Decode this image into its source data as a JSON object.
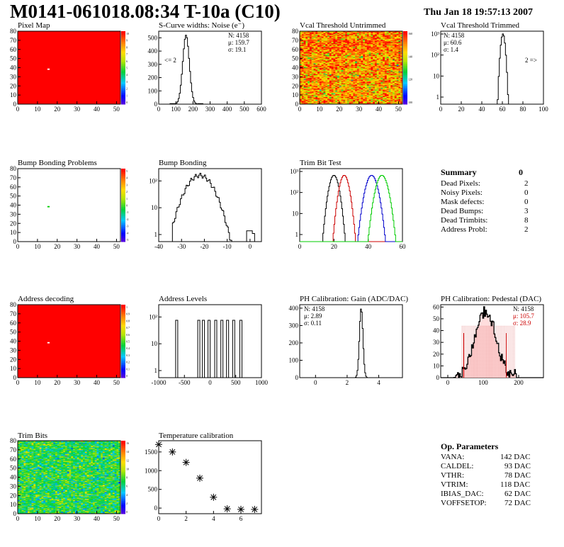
{
  "header": {
    "title": "M0141-061018.08:34 T-10a (C10)",
    "date": "Thu Jan 18 19:57:13 2007"
  },
  "colors": {
    "heat_red": "#ff0000",
    "hist_black": "#000000",
    "trim_red": "#cc0000",
    "trim_blue": "#0000cc",
    "trim_green": "#00cc00",
    "pedestal_fill": "#cc0000",
    "stats_red": "#cc0000"
  },
  "chart_data": [
    {
      "id": "pixel-map",
      "type": "heatmap",
      "title": "Pixel Map",
      "xlim": [
        0,
        52
      ],
      "ylim": [
        0,
        80
      ],
      "xticks": [
        0,
        10,
        20,
        30,
        40,
        50
      ],
      "yticks": [
        0,
        10,
        20,
        30,
        40,
        50,
        60,
        70,
        80
      ],
      "palette_ticks": [
        10,
        9,
        8,
        7,
        6,
        5,
        4,
        3,
        2,
        1,
        0
      ],
      "fill_value": 10,
      "special_pixels": [
        {
          "x": 15,
          "y": 38,
          "value": 0
        }
      ]
    },
    {
      "id": "scurve-widths",
      "type": "histogram",
      "title": "S-Curve widths: Noise (e⁻)",
      "xlim": [
        0,
        600
      ],
      "ylim": [
        0,
        550
      ],
      "xticks": [
        0,
        100,
        200,
        300,
        400,
        500,
        600
      ],
      "yticks": [
        0,
        100,
        200,
        300,
        400,
        500
      ],
      "stats": [
        "N: 4158",
        "μ: 159.7",
        "σ: 19.1"
      ],
      "underflow_label": "<= 2",
      "peak": {
        "mean": 159.7,
        "sigma": 19.1,
        "height": 520
      }
    },
    {
      "id": "vcal-untrimmed",
      "type": "heatmap",
      "title": "Vcal Threshold Untrimmed",
      "xlim": [
        0,
        52
      ],
      "ylim": [
        0,
        80
      ],
      "xticks": [
        0,
        10,
        20,
        30,
        40,
        50
      ],
      "yticks": [
        0,
        10,
        20,
        30,
        40,
        50,
        60,
        70,
        80
      ],
      "palette_ticks": [
        160,
        140,
        120,
        100
      ]
    },
    {
      "id": "vcal-trimmed",
      "type": "histogram",
      "title": "Vcal Threshold Trimmed",
      "log_y": true,
      "xlim": [
        0,
        100
      ],
      "xticks": [
        0,
        20,
        40,
        60,
        80,
        100
      ],
      "yticks": [
        "1",
        "10",
        "10²",
        "10³"
      ],
      "stats": [
        "N: 4158",
        "μ: 60.6",
        "σ: 1.4"
      ],
      "overflow_label": "2 =>",
      "peak": {
        "mean": 60.6,
        "sigma": 1.4,
        "height": 1200
      }
    },
    {
      "id": "bump-bonding-problems",
      "type": "heatmap",
      "title": "Bump Bonding Problems",
      "xlim": [
        0,
        52
      ],
      "ylim": [
        0,
        80
      ],
      "xticks": [
        0,
        10,
        20,
        30,
        40,
        50
      ],
      "yticks": [
        0,
        10,
        20,
        30,
        40,
        50,
        60,
        70,
        80
      ],
      "palette_ticks": [
        5,
        4,
        3,
        2,
        1,
        0,
        -1,
        -2,
        -3,
        -4,
        -5
      ],
      "special_pixels": [
        {
          "x": 15,
          "y": 38,
          "value": 0
        }
      ]
    },
    {
      "id": "bump-bonding",
      "type": "histogram",
      "title": "Bump Bonding",
      "log_y": true,
      "xlim": [
        -40,
        5
      ],
      "xticks": [
        -40,
        -30,
        -20,
        -10,
        0
      ],
      "yticks": [
        "1",
        "10",
        "10²"
      ]
    },
    {
      "id": "trim-bit-test",
      "type": "histogram",
      "title": "Trim Bit Test",
      "log_y": true,
      "xlim": [
        0,
        60
      ],
      "xticks": [
        0,
        20,
        40,
        60
      ],
      "yticks": [
        "1",
        "10",
        "10²",
        "10³"
      ],
      "series_colors": [
        "#000000",
        "#cc0000",
        "#0000cc",
        "#00cc00"
      ]
    },
    {
      "id": "address-decoding",
      "type": "heatmap",
      "title": "Address decoding",
      "xlim": [
        0,
        52
      ],
      "ylim": [
        0,
        80
      ],
      "xticks": [
        0,
        10,
        20,
        30,
        40,
        50
      ],
      "yticks": [
        0,
        10,
        20,
        30,
        40,
        50,
        60,
        70,
        80
      ],
      "palette_ticks": [
        1,
        0.9,
        0.8,
        0.7,
        0.6,
        0.5,
        0.4,
        0.3,
        0.2,
        0.1,
        0
      ],
      "fill_value": 1,
      "special_pixels": [
        {
          "x": 15,
          "y": 38,
          "value": 0
        }
      ]
    },
    {
      "id": "address-levels",
      "type": "histogram",
      "title": "Address Levels",
      "log_y": true,
      "xlim": [
        -1000,
        1000
      ],
      "xticks": [
        -1000,
        -500,
        0,
        500,
        1000
      ],
      "yticks": [
        "1",
        "10",
        "10²"
      ],
      "peaks": [
        -650,
        -220,
        -130,
        -20,
        110,
        230,
        340,
        460,
        600
      ]
    },
    {
      "id": "ph-gain",
      "type": "histogram",
      "title": "PH Calibration: Gain (ADC/DAC)",
      "xlim": [
        -1,
        5.5
      ],
      "ylim": [
        0,
        420
      ],
      "xticks": [
        0,
        2,
        4
      ],
      "yticks": [
        0,
        100,
        200,
        300,
        400
      ],
      "stats": [
        "N: 4158",
        "μ: 2.89",
        "σ: 0.11"
      ],
      "peak": {
        "mean": 2.89,
        "sigma": 0.11,
        "height": 400
      }
    },
    {
      "id": "ph-pedestal",
      "type": "histogram",
      "title": "PH Calibration: Pedestal (DAC)",
      "xlim": [
        -20,
        270
      ],
      "ylim": [
        0,
        62
      ],
      "xticks": [
        0,
        100,
        200
      ],
      "yticks": [
        0,
        10,
        20,
        30,
        40,
        50,
        60
      ],
      "stats": [
        "N: 4158",
        "μ: 105.7",
        "σ: 28.9"
      ],
      "stats_colors": [
        "#000000",
        "#cc0000",
        "#cc0000"
      ],
      "peak": {
        "mean": 105.7,
        "sigma": 28.9,
        "height": 57
      },
      "cut_lines": [
        45,
        165
      ]
    },
    {
      "id": "trim-bits",
      "type": "heatmap",
      "title": "Trim Bits",
      "xlim": [
        0,
        52
      ],
      "ylim": [
        0,
        80
      ],
      "xticks": [
        0,
        10,
        20,
        30,
        40,
        50
      ],
      "yticks": [
        0,
        10,
        20,
        30,
        40,
        50,
        60,
        70,
        80
      ],
      "palette_ticks": [
        16,
        14,
        12,
        10,
        8,
        6,
        4,
        2,
        0
      ]
    },
    {
      "id": "temperature-calibration",
      "type": "scatter",
      "title": "Temperature calibration",
      "xlim": [
        0,
        7.5
      ],
      "ylim": [
        -150,
        1800
      ],
      "xticks": [
        0,
        2,
        4,
        6
      ],
      "yticks": [
        0,
        500,
        1000,
        1500
      ],
      "x": [
        0,
        1,
        2,
        3,
        4,
        5,
        6,
        7
      ],
      "y": [
        1700,
        1500,
        1220,
        800,
        290,
        -20,
        -35,
        -35
      ]
    }
  ],
  "summary": {
    "title": "Summary",
    "total": "0",
    "rows": [
      {
        "label": "Dead Pixels:",
        "value": "2"
      },
      {
        "label": "Noisy Pixels:",
        "value": "0"
      },
      {
        "label": "Mask defects:",
        "value": "0"
      },
      {
        "label": "Dead Bumps:",
        "value": "3"
      },
      {
        "label": "Dead Trimbits:",
        "value": "8"
      },
      {
        "label": "Address Probl:",
        "value": "2"
      }
    ]
  },
  "op_parameters": {
    "title": "Op. Parameters",
    "rows": [
      {
        "label": "VANA:",
        "value": "142 DAC"
      },
      {
        "label": "CALDEL:",
        "value": "93 DAC"
      },
      {
        "label": "VTHR:",
        "value": "78 DAC"
      },
      {
        "label": "VTRIM:",
        "value": "118 DAC"
      },
      {
        "label": "IBIAS_DAC:",
        "value": "62 DAC"
      },
      {
        "label": "VOFFSETOP:",
        "value": "72 DAC"
      }
    ]
  }
}
